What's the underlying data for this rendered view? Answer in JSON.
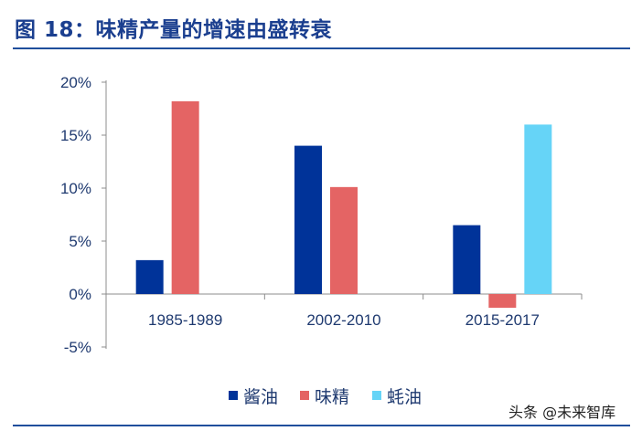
{
  "title": "图 18：味精产量的增速由盛转衰",
  "watermark": "头条 @未来智库",
  "colors": {
    "title": "#1b3f8f",
    "rule": "#1f4e9c",
    "series": [
      "#003399",
      "#e46464",
      "#66d4f7"
    ]
  },
  "chart_data": {
    "type": "bar",
    "categories": [
      "1985-1989",
      "2002-2010",
      "2015-2017"
    ],
    "series": [
      {
        "name": "酱油",
        "values": [
          3.2,
          14.0,
          6.5
        ]
      },
      {
        "name": "味精",
        "values": [
          18.2,
          10.1,
          -1.3
        ]
      },
      {
        "name": "蚝油",
        "values": [
          null,
          null,
          16.0
        ]
      }
    ],
    "ylim": [
      -5,
      20
    ],
    "yticks": [
      "-5%",
      "0%",
      "5%",
      "10%",
      "15%",
      "20%"
    ],
    "ytick_values": [
      -5,
      0,
      5,
      10,
      15,
      20
    ],
    "legend_position": "bottom",
    "grid": false
  }
}
